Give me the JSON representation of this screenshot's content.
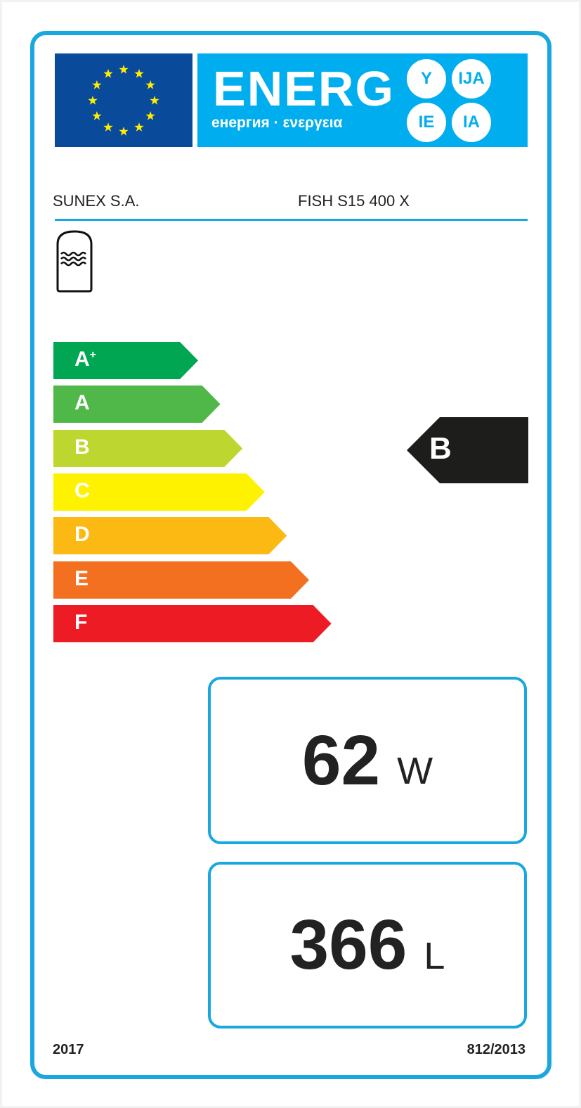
{
  "header": {
    "title": "ENERG",
    "subtitle": "енергия · ενεργεια",
    "suffixes": [
      "Y",
      "IJA",
      "IE",
      "IA"
    ],
    "flag_color": "#0a4a9b",
    "banner_color": "#00aeef"
  },
  "supplier": "SUNEX S.A.",
  "model": "FISH S15 400 X",
  "appliance_icon": "hot-water-storage-tank-icon",
  "scale": [
    {
      "label": "A",
      "sup": "+",
      "color": "#00a651"
    },
    {
      "label": "A",
      "sup": "",
      "color": "#50b848"
    },
    {
      "label": "B",
      "sup": "",
      "color": "#bed630"
    },
    {
      "label": "C",
      "sup": "",
      "color": "#fff200"
    },
    {
      "label": "D",
      "sup": "",
      "color": "#fdb913"
    },
    {
      "label": "E",
      "sup": "",
      "color": "#f37021"
    },
    {
      "label": "F",
      "sup": "",
      "color": "#ed1c24"
    }
  ],
  "rating": {
    "class": "B",
    "color": "#1d1d1b"
  },
  "standing_loss": {
    "value": "62",
    "unit": "W"
  },
  "volume": {
    "value": "366",
    "unit": "L"
  },
  "footer": {
    "year": "2017",
    "regulation": "812/2013"
  },
  "accent_color": "#1aa7df"
}
